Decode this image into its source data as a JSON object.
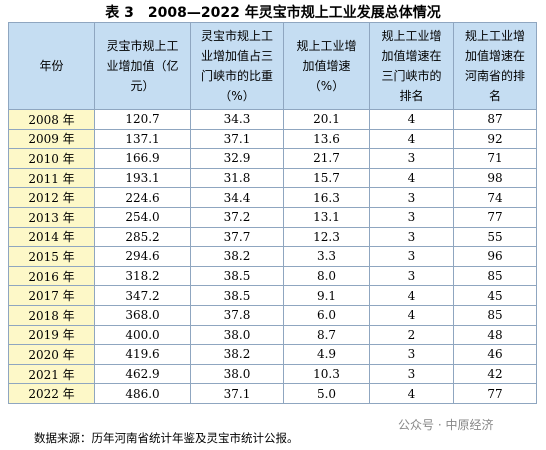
{
  "header": {
    "title": "表 3　2008—2022 年灵宝市规上工业发展总体情况"
  },
  "table": {
    "columns": [
      "年份",
      "灵宝市规上工业增加值（亿元）",
      "灵宝市规上工业增加值占三门峡市的比重（%）",
      "规上工业增加值增速（%）",
      "规上工业增加值增速在三门峡市的排名",
      "规上工业增加值增速在河南省的排名"
    ],
    "rows": [
      [
        "2008 年",
        "120.7",
        "34.3",
        "20.1",
        "4",
        "87"
      ],
      [
        "2009 年",
        "137.1",
        "37.1",
        "13.6",
        "4",
        "92"
      ],
      [
        "2010 年",
        "166.9",
        "32.9",
        "21.7",
        "3",
        "71"
      ],
      [
        "2011 年",
        "193.1",
        "31.8",
        "15.7",
        "4",
        "98"
      ],
      [
        "2012 年",
        "224.6",
        "34.4",
        "16.3",
        "3",
        "74"
      ],
      [
        "2013 年",
        "254.0",
        "37.2",
        "13.1",
        "3",
        "77"
      ],
      [
        "2014 年",
        "285.2",
        "37.7",
        "12.3",
        "3",
        "55"
      ],
      [
        "2015 年",
        "294.6",
        "38.2",
        "3.3",
        "3",
        "96"
      ],
      [
        "2016 年",
        "318.2",
        "38.5",
        "8.0",
        "3",
        "85"
      ],
      [
        "2017 年",
        "347.2",
        "38.5",
        "9.1",
        "4",
        "45"
      ],
      [
        "2018 年",
        "368.0",
        "37.8",
        "6.0",
        "4",
        "85"
      ],
      [
        "2019 年",
        "400.0",
        "38.0",
        "8.7",
        "2",
        "48"
      ],
      [
        "2020 年",
        "419.6",
        "38.2",
        "4.9",
        "3",
        "46"
      ],
      [
        "2021 年",
        "462.9",
        "38.0",
        "10.3",
        "3",
        "42"
      ],
      [
        "2022 年",
        "486.0",
        "37.1",
        "5.0",
        "4",
        "77"
      ]
    ]
  },
  "footer": {
    "source": "数据来源：历年河南省统计年鉴及灵宝市统计公报。",
    "watermark": "公众号 · 中原经济"
  }
}
